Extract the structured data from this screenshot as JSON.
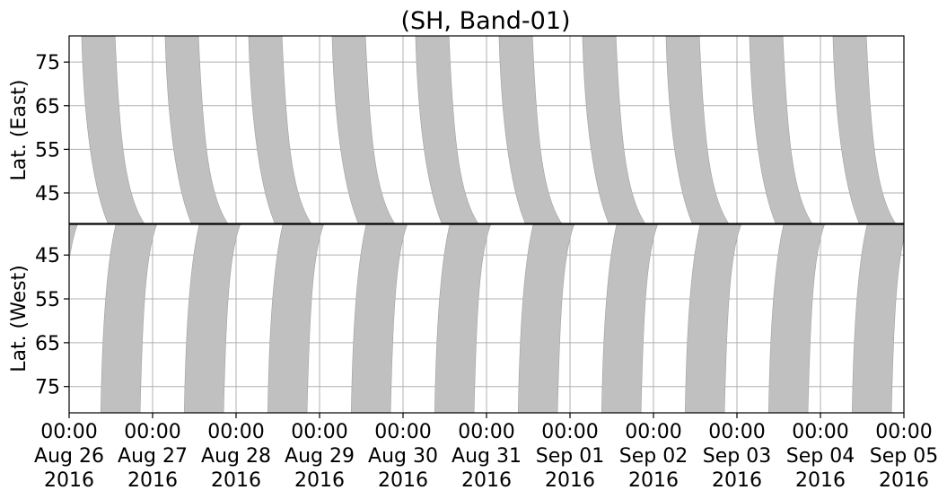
{
  "chart_data": {
    "type": "area",
    "title": "(SH, Band-01)",
    "panels": [
      {
        "name": "east",
        "ylabel": "Lat. (East)",
        "ylim": [
          38,
          81
        ],
        "y_inverted": false,
        "yticks": [
          45,
          55,
          65,
          75
        ],
        "ytick_labels": [
          "45",
          "55",
          "65",
          "75"
        ]
      },
      {
        "name": "west",
        "ylabel": "Lat. (West)",
        "ylim": [
          81,
          38
        ],
        "y_inverted": true,
        "yticks": [
          75,
          65,
          55,
          45
        ],
        "ytick_labels": [
          "75",
          "65",
          "55",
          "45"
        ]
      }
    ],
    "x_range_days": [
      0,
      10
    ],
    "xticks": [
      {
        "line1": "00:00",
        "line2": "Aug 26",
        "line3": "2016"
      },
      {
        "line1": "00:00",
        "line2": "Aug 27",
        "line3": "2016"
      },
      {
        "line1": "00:00",
        "line2": "Aug 28",
        "line3": "2016"
      },
      {
        "line1": "00:00",
        "line2": "Aug 29",
        "line3": "2016"
      },
      {
        "line1": "00:00",
        "line2": "Aug 30",
        "line3": "2016"
      },
      {
        "line1": "00:00",
        "line2": "Aug 31",
        "line3": "2016"
      },
      {
        "line1": "00:00",
        "line2": "Sep 01",
        "line3": "2016"
      },
      {
        "line1": "00:00",
        "line2": "Sep 02",
        "line3": "2016"
      },
      {
        "line1": "00:00",
        "line2": "Sep 03",
        "line3": "2016"
      },
      {
        "line1": "00:00",
        "line2": "Sep 04",
        "line3": "2016"
      },
      {
        "line1": "00:00",
        "line2": "Sep 05",
        "line3": "2016"
      }
    ],
    "grid": true,
    "colors": {
      "band_fill": "#c0c0c0",
      "band_stroke": "#a0a0a0",
      "grid": "#b0b0b0"
    },
    "east_bands": [
      {
        "x_start": 0.15,
        "x_top_end": 0.55,
        "x_bottom_end": 0.9
      },
      {
        "x_start": 1.15,
        "x_top_end": 1.55,
        "x_bottom_end": 1.9
      },
      {
        "x_start": 2.15,
        "x_top_end": 2.55,
        "x_bottom_end": 2.9
      },
      {
        "x_start": 3.15,
        "x_top_end": 3.55,
        "x_bottom_end": 3.9
      },
      {
        "x_start": 4.15,
        "x_top_end": 4.55,
        "x_bottom_end": 4.9
      },
      {
        "x_start": 5.15,
        "x_top_end": 5.55,
        "x_bottom_end": 5.9
      },
      {
        "x_start": 6.15,
        "x_top_end": 6.55,
        "x_bottom_end": 6.9
      },
      {
        "x_start": 7.15,
        "x_top_end": 7.55,
        "x_bottom_end": 7.9
      },
      {
        "x_start": 8.15,
        "x_top_end": 8.55,
        "x_bottom_end": 8.9
      },
      {
        "x_start": 9.15,
        "x_top_end": 9.55,
        "x_bottom_end": 9.9
      }
    ],
    "west_bands": [
      {
        "x_start": -0.45,
        "x_top_end": -0.1,
        "x_bottom_end": 0.1
      },
      {
        "x_start": 0.38,
        "x_top_end": 0.85,
        "x_bottom_end": 1.05
      },
      {
        "x_start": 1.38,
        "x_top_end": 1.85,
        "x_bottom_end": 2.05
      },
      {
        "x_start": 2.38,
        "x_top_end": 2.85,
        "x_bottom_end": 3.05
      },
      {
        "x_start": 3.38,
        "x_top_end": 3.85,
        "x_bottom_end": 4.05
      },
      {
        "x_start": 4.38,
        "x_top_end": 4.85,
        "x_bottom_end": 5.05
      },
      {
        "x_start": 5.38,
        "x_top_end": 5.85,
        "x_bottom_end": 6.05
      },
      {
        "x_start": 6.38,
        "x_top_end": 6.85,
        "x_bottom_end": 7.05
      },
      {
        "x_start": 7.38,
        "x_top_end": 7.85,
        "x_bottom_end": 8.05
      },
      {
        "x_start": 8.38,
        "x_top_end": 8.85,
        "x_bottom_end": 9.05
      },
      {
        "x_start": 9.38,
        "x_top_end": 9.85,
        "x_bottom_end": 10.05
      }
    ]
  }
}
